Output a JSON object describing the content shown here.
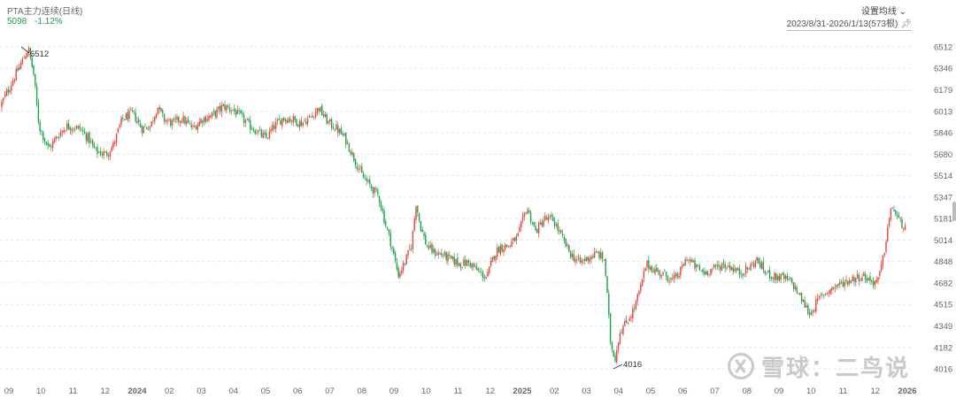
{
  "header": {
    "title": "PTA主力连续(日线)",
    "price": "5098",
    "change": "-1.12%",
    "ma_setting": "设置均线 ⌄",
    "range": "2023/8/31-2026/1/13(573根)",
    "pin_icon": "pin-icon"
  },
  "watermark": {
    "text": "雪球：二鸟说",
    "logo_icon": "snowball-logo"
  },
  "colors": {
    "up": "#e5453a",
    "down": "#1aa34a",
    "grid": "#e6e6e6",
    "axis_text": "#666666"
  },
  "chart_data": {
    "type": "candlestick",
    "title": "PTA主力连续(日线)",
    "y_ticks": [
      6512,
      6346,
      6179,
      6013,
      5846,
      5680,
      5514,
      5347,
      5181,
      5014,
      4848,
      4682,
      4515,
      4349,
      4182,
      4016
    ],
    "ylim": [
      4016,
      6512
    ],
    "x_ticks": [
      "09",
      "10",
      "11",
      "12",
      "2024",
      "02",
      "03",
      "04",
      "05",
      "06",
      "07",
      "08",
      "09",
      "10",
      "11",
      "12",
      "2025",
      "02",
      "03",
      "04",
      "05",
      "06",
      "07",
      "08",
      "09",
      "10",
      "11",
      "12",
      "2026"
    ],
    "x_range": [
      "2023/8/31",
      "2026/1/13"
    ],
    "bar_count": 573,
    "annotations": [
      {
        "label": "6512",
        "kind": "max"
      },
      {
        "label": "4016",
        "kind": "min"
      }
    ],
    "grid": true,
    "series": [
      {
        "values": [
          [
            0,
            6050
          ],
          [
            25,
            6400
          ],
          [
            32,
            6500
          ],
          [
            38,
            6300
          ],
          [
            44,
            5900
          ],
          [
            55,
            5720
          ],
          [
            65,
            5820
          ],
          [
            75,
            5900
          ],
          [
            90,
            5880
          ],
          [
            100,
            5800
          ],
          [
            108,
            5700
          ],
          [
            120,
            5680
          ],
          [
            128,
            5750
          ],
          [
            138,
            5950
          ],
          [
            150,
            6000
          ],
          [
            160,
            5880
          ],
          [
            170,
            5900
          ],
          [
            178,
            6050
          ],
          [
            185,
            5950
          ],
          [
            195,
            5920
          ],
          [
            205,
            5960
          ],
          [
            218,
            5880
          ],
          [
            228,
            5950
          ],
          [
            240,
            5980
          ],
          [
            252,
            6050
          ],
          [
            262,
            6030
          ],
          [
            272,
            5970
          ],
          [
            282,
            5900
          ],
          [
            292,
            5850
          ],
          [
            300,
            5800
          ],
          [
            310,
            5900
          ],
          [
            320,
            5960
          ],
          [
            330,
            5950
          ],
          [
            340,
            5920
          ],
          [
            350,
            5960
          ],
          [
            360,
            6040
          ],
          [
            370,
            5930
          ],
          [
            380,
            5880
          ],
          [
            390,
            5800
          ],
          [
            400,
            5650
          ],
          [
            410,
            5500
          ],
          [
            420,
            5420
          ],
          [
            428,
            5350
          ],
          [
            435,
            5150
          ],
          [
            442,
            4980
          ],
          [
            450,
            4740
          ],
          [
            458,
            4850
          ],
          [
            465,
            4980
          ],
          [
            470,
            5300
          ],
          [
            475,
            5120
          ],
          [
            482,
            4970
          ],
          [
            490,
            4920
          ],
          [
            500,
            4900
          ],
          [
            510,
            4860
          ],
          [
            520,
            4830
          ],
          [
            530,
            4840
          ],
          [
            540,
            4770
          ],
          [
            550,
            4720
          ],
          [
            558,
            4900
          ],
          [
            565,
            4960
          ],
          [
            575,
            4970
          ],
          [
            585,
            5040
          ],
          [
            595,
            5270
          ],
          [
            605,
            5080
          ],
          [
            615,
            5180
          ],
          [
            625,
            5170
          ],
          [
            635,
            5030
          ],
          [
            645,
            4900
          ],
          [
            655,
            4840
          ],
          [
            665,
            4880
          ],
          [
            675,
            4910
          ],
          [
            683,
            4860
          ],
          [
            690,
            4200
          ],
          [
            695,
            4100
          ],
          [
            700,
            4300
          ],
          [
            708,
            4380
          ],
          [
            716,
            4480
          ],
          [
            724,
            4650
          ],
          [
            730,
            4830
          ],
          [
            740,
            4780
          ],
          [
            752,
            4740
          ],
          [
            760,
            4700
          ],
          [
            768,
            4760
          ],
          [
            776,
            4880
          ],
          [
            785,
            4810
          ],
          [
            795,
            4760
          ],
          [
            805,
            4790
          ],
          [
            815,
            4820
          ],
          [
            825,
            4810
          ],
          [
            835,
            4760
          ],
          [
            845,
            4790
          ],
          [
            855,
            4860
          ],
          [
            865,
            4760
          ],
          [
            875,
            4730
          ],
          [
            885,
            4720
          ],
          [
            895,
            4680
          ],
          [
            905,
            4560
          ],
          [
            915,
            4440
          ],
          [
            925,
            4560
          ],
          [
            935,
            4620
          ],
          [
            945,
            4660
          ],
          [
            955,
            4690
          ],
          [
            965,
            4720
          ],
          [
            975,
            4740
          ],
          [
            985,
            4690
          ],
          [
            992,
            4700
          ],
          [
            998,
            4880
          ],
          [
            1003,
            5120
          ],
          [
            1008,
            5280
          ],
          [
            1014,
            5180
          ],
          [
            1020,
            5130
          ],
          [
            1024,
            5098
          ]
        ]
      }
    ]
  }
}
